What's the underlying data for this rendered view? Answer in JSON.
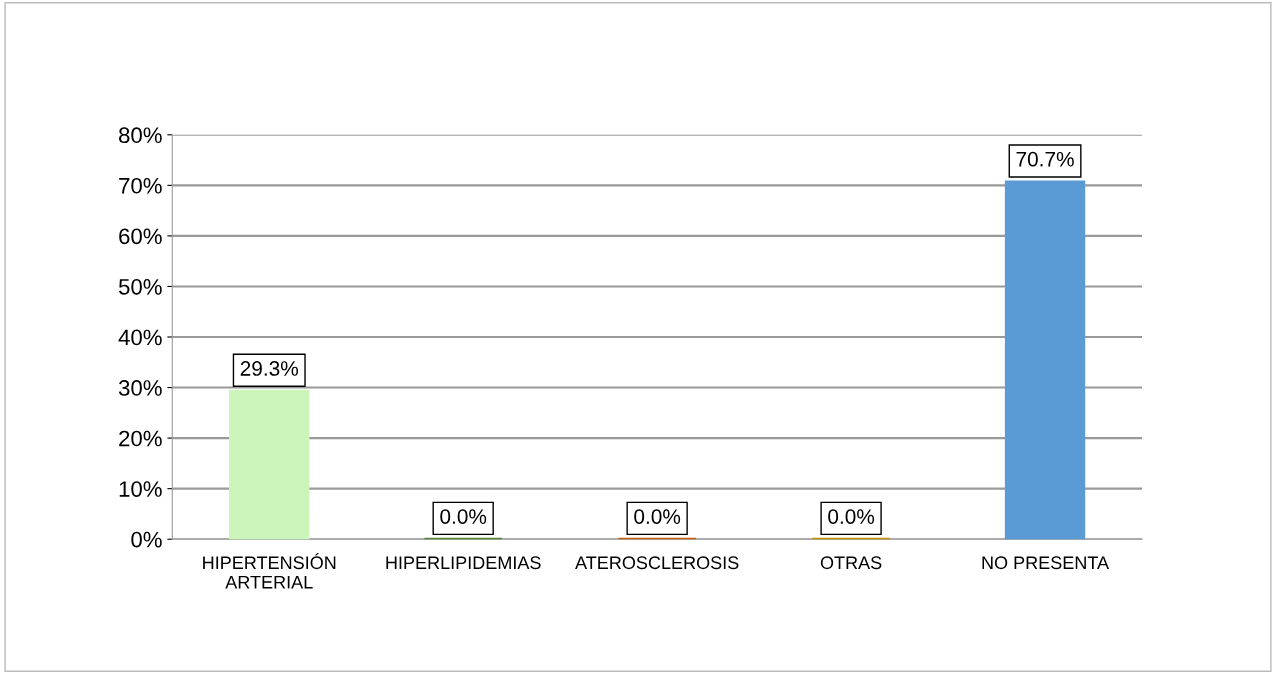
{
  "chart_data": {
    "type": "bar",
    "categories": [
      "HIPERTENSIÓN\nARTERIAL",
      "HIPERLIPIDEMIAS",
      "ATEROSCLEROSIS",
      "OTRAS",
      "NO PRESENTA"
    ],
    "values": [
      29.3,
      0.0,
      0.0,
      0.0,
      70.7
    ],
    "colors": [
      "#ccf5bb",
      "#548235",
      "#c55a11",
      "#bf9000",
      "#5b9bd5"
    ],
    "value_labels": [
      "29.3%",
      "0.0%",
      "0.0%",
      "0.0%",
      "70.7%"
    ],
    "ylim": [
      0,
      80
    ],
    "yticks": [
      {
        "value": 0,
        "label": "0%"
      },
      {
        "value": 10,
        "label": "10%"
      },
      {
        "value": 20,
        "label": "20%"
      },
      {
        "value": 30,
        "label": "30%"
      },
      {
        "value": 40,
        "label": "40%"
      },
      {
        "value": 50,
        "label": "50%"
      },
      {
        "value": 60,
        "label": "60%"
      },
      {
        "value": 70,
        "label": "70%"
      },
      {
        "value": 80,
        "label": "80%"
      }
    ],
    "grid": "y"
  }
}
